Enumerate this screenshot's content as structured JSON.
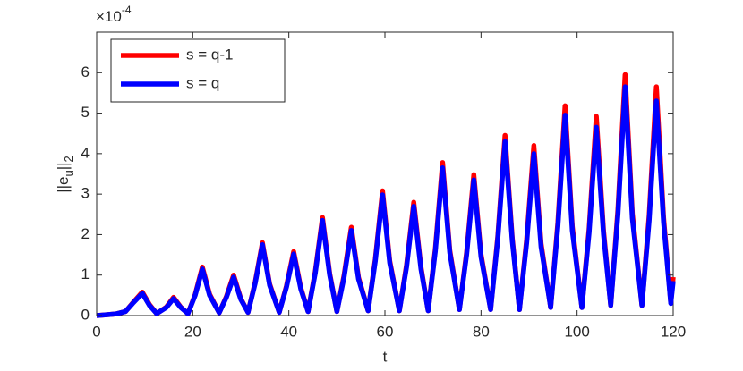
{
  "chart_data": {
    "type": "line",
    "xlabel": "t",
    "ylabel_parts": [
      "||e",
      "u",
      "||",
      "2"
    ],
    "y_scale_base": "×10",
    "y_scale_exponent": "-4",
    "x": [
      0,
      2,
      4,
      6,
      7.5,
      9.5,
      11,
      12.5,
      14.5,
      16,
      17.5,
      19,
      20.5,
      22,
      23.5,
      25.5,
      27,
      28.5,
      30,
      31.5,
      33,
      34.5,
      36,
      38,
      39.5,
      41,
      42.5,
      44,
      45.5,
      47,
      48.5,
      50,
      51.5,
      53,
      54.5,
      56.5,
      58,
      59.5,
      61,
      63,
      64.5,
      66,
      67.5,
      69,
      70.5,
      72,
      73.5,
      75.5,
      77,
      78.5,
      80,
      82,
      83.5,
      85,
      86.5,
      88,
      89.5,
      91,
      92.5,
      94.5,
      96,
      97.5,
      99,
      101,
      102.5,
      104,
      105.5,
      107,
      108.5,
      110,
      111.5,
      113.5,
      115,
      116.5,
      118,
      119.5,
      120
    ],
    "series": [
      {
        "name": "s = q-1",
        "color": "#ff0000",
        "values": [
          0,
          0.02,
          0.04,
          0.1,
          0.31,
          0.58,
          0.27,
          0.05,
          0.21,
          0.45,
          0.21,
          0.05,
          0.52,
          1.2,
          0.53,
          0.07,
          0.47,
          1.0,
          0.42,
          0.08,
          0.83,
          1.8,
          0.78,
          0.08,
          0.73,
          1.58,
          0.68,
          0.1,
          1.09,
          2.42,
          1.04,
          0.1,
          1.0,
          2.18,
          0.94,
          0.12,
          1.4,
          3.08,
          1.35,
          0.12,
          1.25,
          2.8,
          1.2,
          0.12,
          1.66,
          3.78,
          1.61,
          0.15,
          1.56,
          3.48,
          1.51,
          0.15,
          1.97,
          4.45,
          1.92,
          0.15,
          1.88,
          4.2,
          1.78,
          0.2,
          2.3,
          5.18,
          2.2,
          0.2,
          2.15,
          4.92,
          2.1,
          0.25,
          2.62,
          5.95,
          2.52,
          0.25,
          2.48,
          5.65,
          2.42,
          0.32,
          0.95
        ]
      },
      {
        "name": "s = q",
        "color": "#0000ff",
        "values": [
          0,
          0.02,
          0.04,
          0.1,
          0.3,
          0.55,
          0.25,
          0.05,
          0.2,
          0.42,
          0.2,
          0.05,
          0.5,
          1.15,
          0.5,
          0.07,
          0.45,
          0.95,
          0.4,
          0.08,
          0.8,
          1.75,
          0.75,
          0.08,
          0.7,
          1.52,
          0.65,
          0.1,
          1.05,
          2.35,
          1.0,
          0.1,
          0.95,
          2.1,
          0.9,
          0.12,
          1.35,
          2.98,
          1.3,
          0.12,
          1.2,
          2.7,
          1.15,
          0.12,
          1.6,
          3.65,
          1.55,
          0.15,
          1.5,
          3.35,
          1.45,
          0.15,
          1.9,
          4.3,
          1.85,
          0.15,
          1.8,
          4.0,
          1.7,
          0.2,
          2.2,
          4.95,
          2.1,
          0.2,
          2.05,
          4.65,
          2.0,
          0.25,
          2.5,
          5.65,
          2.4,
          0.25,
          2.35,
          5.3,
          2.3,
          0.3,
          0.85
        ]
      }
    ],
    "xlim": [
      0,
      120
    ],
    "xticks": [
      0,
      20,
      40,
      60,
      80,
      100,
      120
    ],
    "ylim": [
      0,
      7
    ],
    "yticks": [
      0,
      1,
      2,
      3,
      4,
      5,
      6
    ],
    "legend": "top-left"
  }
}
